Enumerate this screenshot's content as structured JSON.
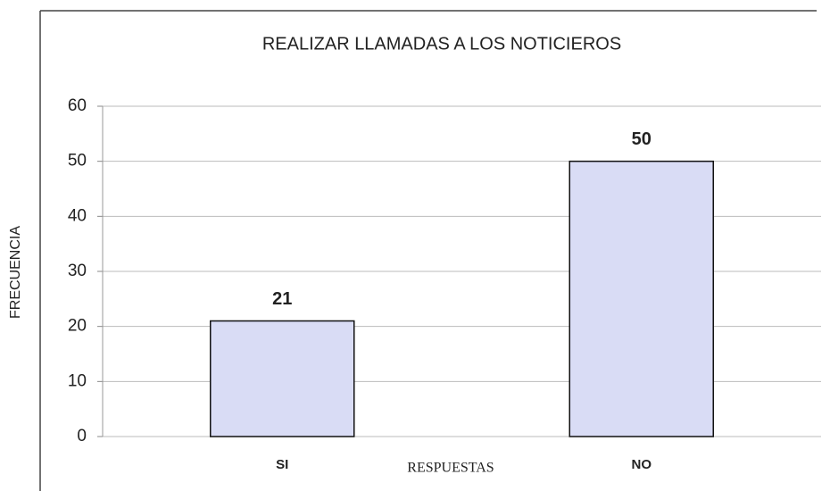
{
  "chart_data": {
    "type": "bar",
    "title": "REALIZAR LLAMADAS A LOS NOTICIEROS",
    "categories": [
      "SI",
      "NO"
    ],
    "values": [
      21,
      50
    ],
    "color": "#d9dcf5",
    "x_label": "RESPUESTAS",
    "y_label": "FRECUENCIA",
    "ylim": [
      0,
      60
    ],
    "yticks": [
      0,
      10,
      20,
      30,
      40,
      50,
      60
    ],
    "grid": true
  }
}
